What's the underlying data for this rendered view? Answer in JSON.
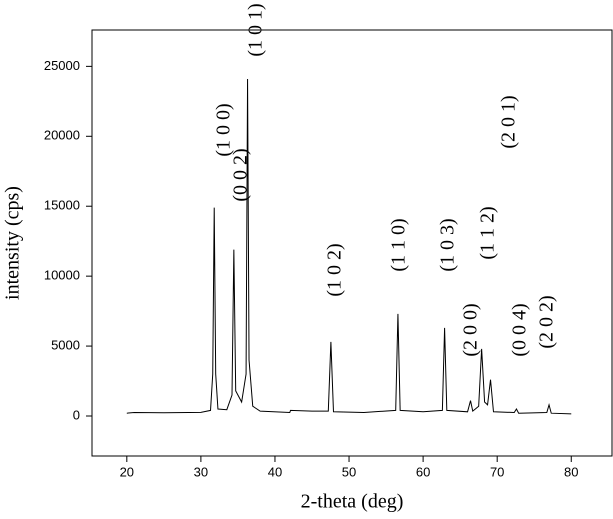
{
  "chart_data": {
    "type": "line",
    "xlabel": "2-theta (deg)",
    "ylabel": "intensity (cps)",
    "x": [
      20,
      21,
      25,
      30,
      31.3,
      31.6,
      31.8,
      32.0,
      32.3,
      33.5,
      34.2,
      34.45,
      34.7,
      35.5,
      36.1,
      36.3,
      36.5,
      37,
      38,
      42,
      42.1,
      45,
      47.2,
      47.55,
      47.9,
      52,
      56.3,
      56.6,
      56.9,
      60,
      62.6,
      62.9,
      63.2,
      66,
      66.4,
      66.7,
      67.5,
      67.9,
      68.3,
      68.7,
      69.1,
      69.5,
      72.3,
      72.6,
      72.9,
      76.7,
      77,
      77.3,
      80
    ],
    "values": [
      200,
      250,
      230,
      260,
      400,
      3000,
      14900,
      3000,
      500,
      450,
      1500,
      11900,
      1800,
      1000,
      3000,
      24100,
      4000,
      700,
      350,
      250,
      400,
      350,
      350,
      5300,
      300,
      250,
      400,
      7300,
      400,
      300,
      400,
      6300,
      400,
      300,
      1100,
      350,
      700,
      4800,
      1000,
      800,
      2600,
      300,
      250,
      500,
      200,
      250,
      800,
      200,
      150
    ],
    "color": "#000000",
    "xlim": [
      15.3,
      85.5
    ],
    "ylim": [
      -2860,
      27600
    ],
    "xticks": [
      20,
      30,
      40,
      50,
      60,
      70,
      80
    ],
    "yticks": [
      0,
      5000,
      10000,
      15000,
      20000,
      25000
    ],
    "annotations": [
      "(1 0 0)",
      "(0 0 2)",
      "(1 0 1)",
      "(1 0 2)",
      "(1 1 0)",
      "(1 0 3)",
      "(1 1 2)",
      "(2 0 1)",
      "(2 0 0)",
      "(0 0 4)",
      "(2 0 2)"
    ]
  }
}
